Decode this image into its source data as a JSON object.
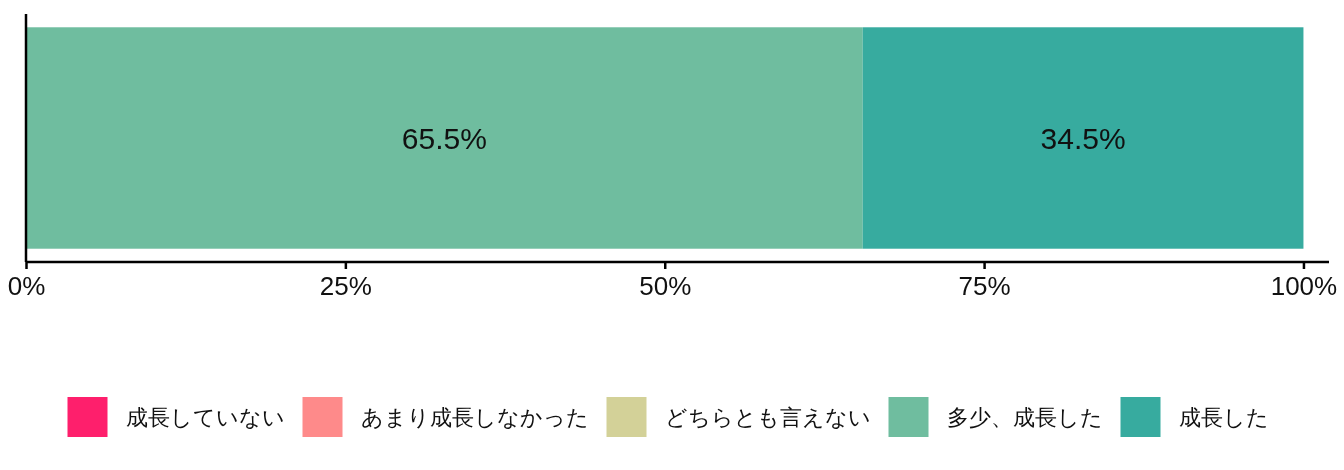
{
  "chart_data": {
    "type": "bar",
    "orientation": "horizontal",
    "stacked": true,
    "categories": [
      null
    ],
    "series": [
      {
        "name": "成長していない",
        "color": "#fe1f6c",
        "values": [
          0
        ]
      },
      {
        "name": "あまり成長しなかった",
        "color": "#fe8a8a",
        "values": [
          0
        ]
      },
      {
        "name": "どちらとも言えない",
        "color": "#d3d198",
        "values": [
          0
        ]
      },
      {
        "name": "多少、成長した",
        "color": "#6fbd9f",
        "values": [
          65.5
        ],
        "value_labels": [
          "65.5%"
        ]
      },
      {
        "name": "成長した",
        "color": "#37ab9f",
        "values": [
          34.5
        ],
        "value_labels": [
          "34.5%"
        ]
      }
    ],
    "xlim": [
      0,
      102
    ],
    "xticks": [
      {
        "value": 0,
        "label": "0%"
      },
      {
        "value": 25,
        "label": "25%"
      },
      {
        "value": 50,
        "label": "50%"
      },
      {
        "value": 75,
        "label": "75%"
      },
      {
        "value": 100,
        "label": "100%"
      }
    ],
    "legend": "bottom"
  }
}
